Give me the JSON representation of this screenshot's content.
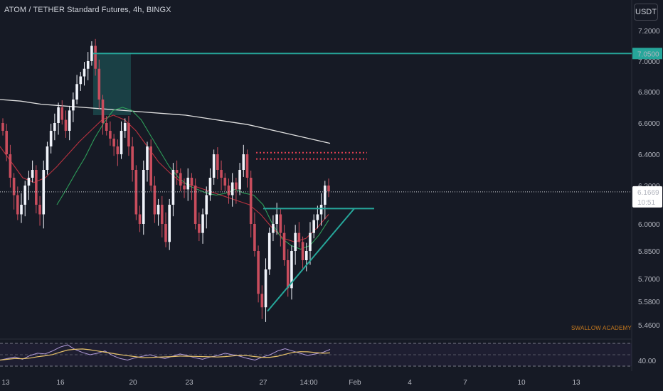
{
  "header": {
    "title": "ATOM / TETHER Standard Futures, 4h, BINGX",
    "currency_button": "USDT"
  },
  "watermark": "SWALLOW ACADEMY",
  "colors": {
    "background": "#161a25",
    "bull": "#f0f3fa",
    "bear": "#c94d5d",
    "teal": "#26a69a",
    "ma_white": "#e0e0e0",
    "ma_red": "#b8323f",
    "ma_green": "#2e9e5a",
    "price_label_bg": "#ffffff",
    "level_label_bg": "#26a69a"
  },
  "chart_data": {
    "type": "candlestick",
    "price_axis_ticks": [
      "7.2000",
      "7.0000",
      "6.8000",
      "6.6000",
      "6.4000",
      "6.2000",
      "6.0000",
      "5.8500",
      "5.7000",
      "5.5800",
      "5.4600"
    ],
    "time_axis_ticks": [
      "13",
      "16",
      "20",
      "23",
      "27",
      "14:00",
      "Feb",
      "4",
      "7",
      "10",
      "13"
    ],
    "current_price": "6.1669",
    "countdown": "10:51",
    "resistance_level": "7.0500",
    "rsi_axis_tick": "40.00",
    "ylim": [
      5.4,
      7.3
    ],
    "annotations": [
      {
        "type": "horizontal-line",
        "label": "7.0500",
        "color": "#26a69a"
      },
      {
        "type": "dotted-line",
        "value": 6.41,
        "color": "#e04050"
      },
      {
        "type": "dotted-line",
        "value": 6.37,
        "color": "#e04050"
      },
      {
        "type": "ascending-triangle",
        "top": 6.08,
        "bottom": 5.53,
        "color": "#26a69a"
      }
    ],
    "candles_close": [
      6.55,
      6.4,
      6.25,
      6.15,
      6.05,
      6.1,
      6.2,
      6.25,
      6.3,
      6.1,
      6.05,
      6.3,
      6.45,
      6.55,
      6.6,
      6.7,
      6.62,
      6.55,
      6.68,
      6.75,
      6.85,
      6.9,
      6.95,
      7.0,
      7.1,
      6.95,
      6.75,
      6.6,
      6.55,
      6.5,
      6.45,
      6.4,
      6.55,
      6.6,
      6.45,
      6.3,
      6.05,
      6.0,
      6.3,
      6.45,
      6.2,
      6.05,
      6.1,
      6.0,
      5.9,
      6.1,
      6.3,
      6.28,
      6.2,
      6.18,
      6.25,
      6.2,
      6.0,
      5.95,
      6.05,
      6.15,
      6.25,
      6.4,
      6.3,
      6.25,
      6.2,
      6.15,
      6.22,
      6.18,
      6.3,
      6.4,
      6.25,
      6.0,
      5.85,
      5.62,
      5.55,
      5.75,
      5.95,
      6.0,
      6.05,
      5.95,
      5.8,
      5.65,
      5.85,
      5.95,
      5.9,
      5.8,
      5.85,
      5.95,
      6.02,
      6.05,
      6.1,
      6.2,
      6.17
    ],
    "ma_white": [
      6.75,
      6.74,
      6.72,
      6.71,
      6.7,
      6.69,
      6.68,
      6.67,
      6.66,
      6.65,
      6.63,
      6.61,
      6.59,
      6.56,
      6.53,
      6.5,
      6.47
    ],
    "ma_red": [
      6.45,
      6.35,
      6.25,
      6.22,
      6.25,
      6.32,
      6.4,
      6.48,
      6.55,
      6.62,
      6.65,
      6.62,
      6.55,
      6.45,
      6.35,
      6.28,
      6.22,
      6.2,
      6.18,
      6.16,
      6.14,
      6.12,
      6.1,
      6.05,
      5.98,
      5.92,
      5.9,
      5.92,
      5.98,
      6.05
    ],
    "ma_green": [
      6.1,
      6.18,
      6.28,
      6.38,
      6.5,
      6.6,
      6.68,
      6.7,
      6.68,
      6.62,
      6.52,
      6.42,
      6.32,
      6.25,
      6.2,
      6.18,
      6.16,
      6.15,
      6.16,
      6.18,
      6.16,
      6.15,
      6.1,
      6.0,
      5.92,
      5.88,
      5.86,
      5.88,
      5.94,
      6.02
    ],
    "rsi_values": [
      38,
      40,
      42,
      39,
      44,
      47,
      46,
      50,
      55,
      58,
      52,
      48,
      45,
      47,
      50,
      44,
      40,
      38,
      41,
      43,
      45,
      42,
      40,
      43,
      46,
      44,
      41,
      39,
      42,
      44,
      47,
      45,
      43,
      40,
      38,
      42,
      45,
      50,
      53,
      50,
      47,
      44,
      46,
      48,
      52
    ]
  }
}
